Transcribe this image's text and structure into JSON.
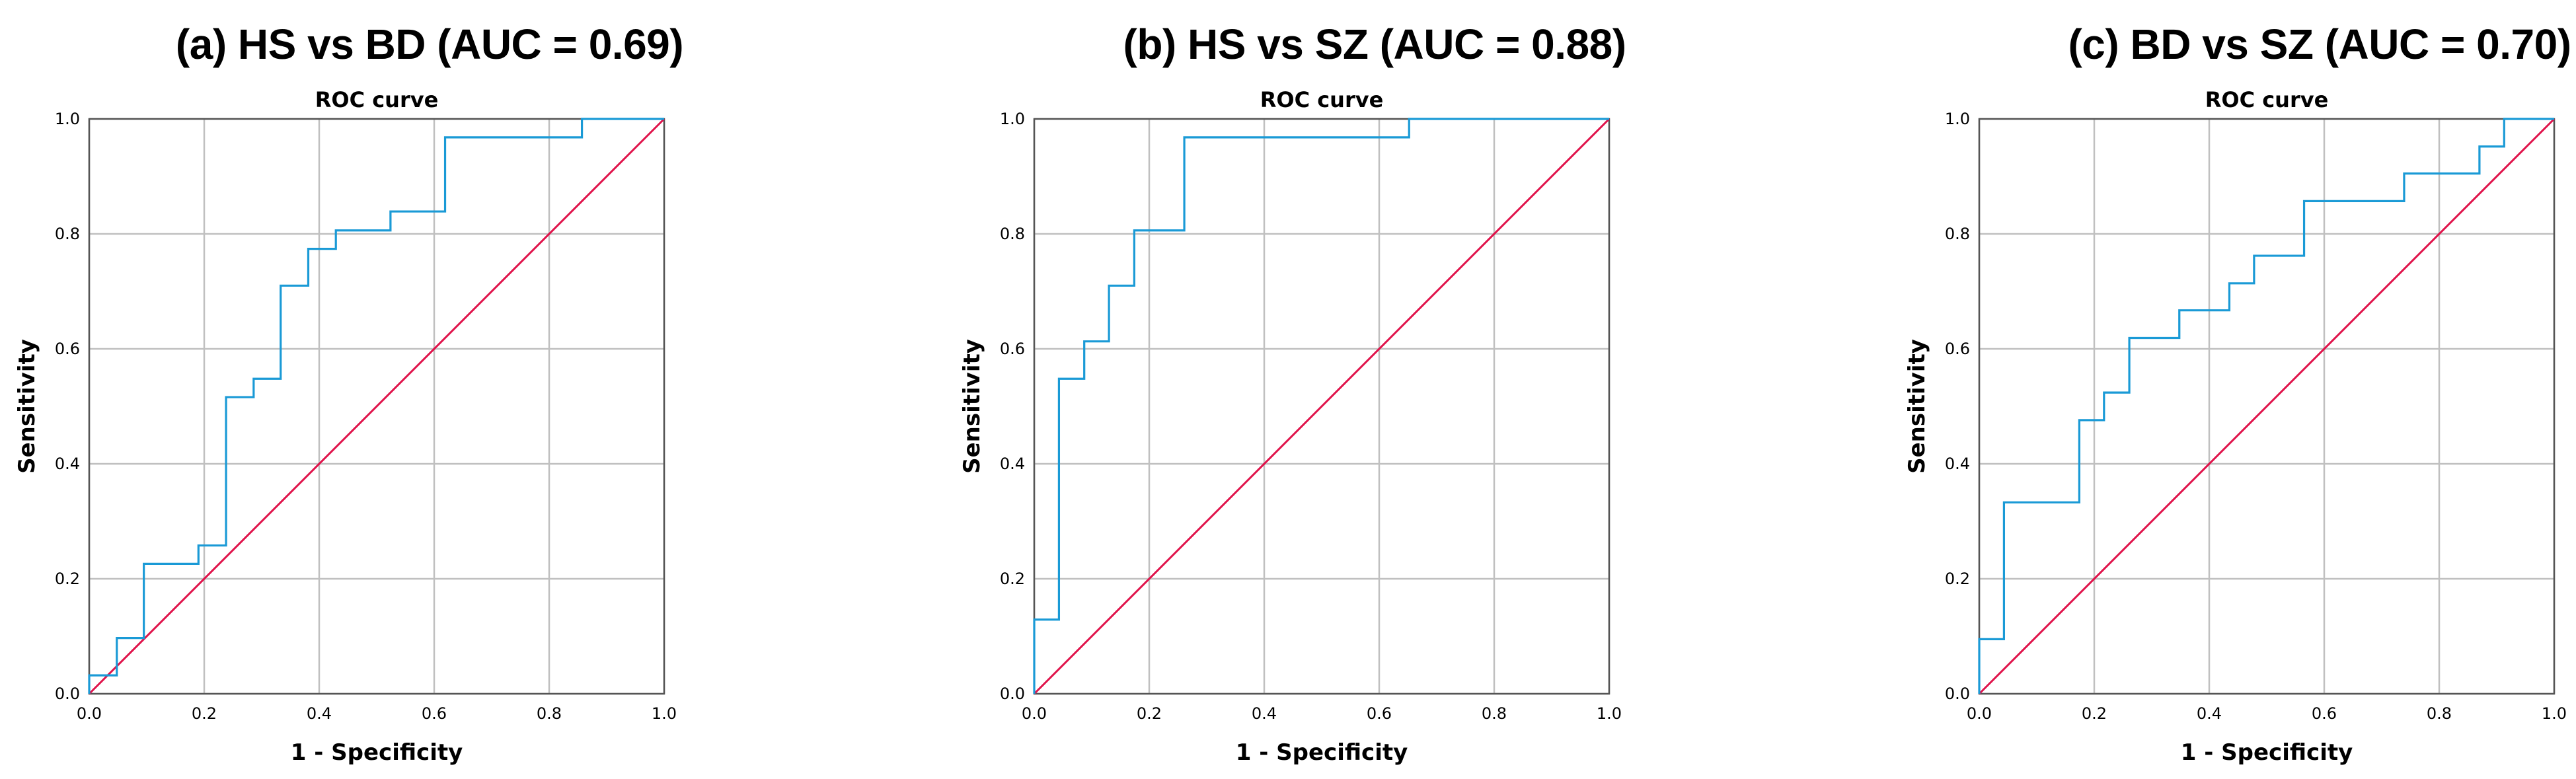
{
  "chart_data": [
    {
      "type": "line",
      "panel_title": "(a) HS vs BD (AUC = 0.69)",
      "title": "ROC curve",
      "xlabel": "1 - Specificity",
      "ylabel": "Sensitivity",
      "xlim": [
        0,
        1
      ],
      "ylim": [
        0,
        1
      ],
      "xticks": [
        "0.0",
        "0.2",
        "0.4",
        "0.6",
        "0.8",
        "1.0"
      ],
      "yticks": [
        "0.0",
        "0.2",
        "0.4",
        "0.6",
        "0.8",
        "1.0"
      ],
      "grid": true,
      "colors": {
        "roc": "#1a9ad6",
        "reference": "#e0124a",
        "grid": "#c0c0c0"
      },
      "series": [
        {
          "x": [
            0,
            0,
            0.048,
            0.048,
            0.095,
            0.095,
            0.19,
            0.19,
            0.238,
            0.238,
            0.286,
            0.286,
            0.333,
            0.333,
            0.381,
            0.381,
            0.429,
            0.429,
            0.524,
            0.524,
            0.619,
            0.619,
            0.857,
            0.857,
            1.0
          ],
          "y": [
            0,
            0.032,
            0.032,
            0.097,
            0.097,
            0.226,
            0.226,
            0.258,
            0.258,
            0.516,
            0.516,
            0.548,
            0.548,
            0.71,
            0.71,
            0.774,
            0.774,
            0.806,
            0.806,
            0.839,
            0.839,
            0.968,
            0.968,
            1.0,
            1.0
          ]
        },
        {
          "x": [
            0,
            1
          ],
          "y": [
            0,
            1
          ]
        }
      ]
    },
    {
      "type": "line",
      "panel_title": "(b) HS vs SZ (AUC = 0.88)",
      "title": "ROC curve",
      "xlabel": "1 - Specificity",
      "ylabel": "Sensitivity",
      "xlim": [
        0,
        1
      ],
      "ylim": [
        0,
        1
      ],
      "xticks": [
        "0.0",
        "0.2",
        "0.4",
        "0.6",
        "0.8",
        "1.0"
      ],
      "yticks": [
        "0.0",
        "0.2",
        "0.4",
        "0.6",
        "0.8",
        "1.0"
      ],
      "grid": true,
      "colors": {
        "roc": "#1a9ad6",
        "reference": "#e0124a",
        "grid": "#c0c0c0"
      },
      "series": [
        {
          "x": [
            0,
            0,
            0.043,
            0.043,
            0.087,
            0.087,
            0.13,
            0.13,
            0.174,
            0.174,
            0.261,
            0.261,
            0.652,
            0.652,
            1.0
          ],
          "y": [
            0,
            0.129,
            0.129,
            0.548,
            0.548,
            0.613,
            0.613,
            0.71,
            0.71,
            0.806,
            0.806,
            0.968,
            0.968,
            1.0,
            1.0
          ]
        },
        {
          "x": [
            0,
            1
          ],
          "y": [
            0,
            1
          ]
        }
      ]
    },
    {
      "type": "line",
      "panel_title": "(c) BD vs SZ (AUC = 0.70)",
      "title": "ROC curve",
      "xlabel": "1 - Specificity",
      "ylabel": "Sensitivity",
      "xlim": [
        0,
        1
      ],
      "ylim": [
        0,
        1
      ],
      "xticks": [
        "0.0",
        "0.2",
        "0.4",
        "0.6",
        "0.8",
        "1.0"
      ],
      "yticks": [
        "0.0",
        "0.2",
        "0.4",
        "0.6",
        "0.8",
        "1.0"
      ],
      "grid": true,
      "colors": {
        "roc": "#1a9ad6",
        "reference": "#e0124a",
        "grid": "#c0c0c0"
      },
      "series": [
        {
          "x": [
            0,
            0,
            0.043,
            0.043,
            0.174,
            0.174,
            0.217,
            0.217,
            0.261,
            0.261,
            0.348,
            0.348,
            0.435,
            0.435,
            0.478,
            0.478,
            0.565,
            0.565,
            0.739,
            0.739,
            0.87,
            0.87,
            0.913,
            0.913,
            1.0
          ],
          "y": [
            0,
            0.095,
            0.095,
            0.333,
            0.333,
            0.476,
            0.476,
            0.524,
            0.524,
            0.619,
            0.619,
            0.667,
            0.667,
            0.714,
            0.714,
            0.762,
            0.762,
            0.857,
            0.857,
            0.905,
            0.905,
            0.952,
            0.952,
            1.0,
            1.0
          ]
        },
        {
          "x": [
            0,
            1
          ],
          "y": [
            0,
            1
          ]
        }
      ]
    }
  ]
}
